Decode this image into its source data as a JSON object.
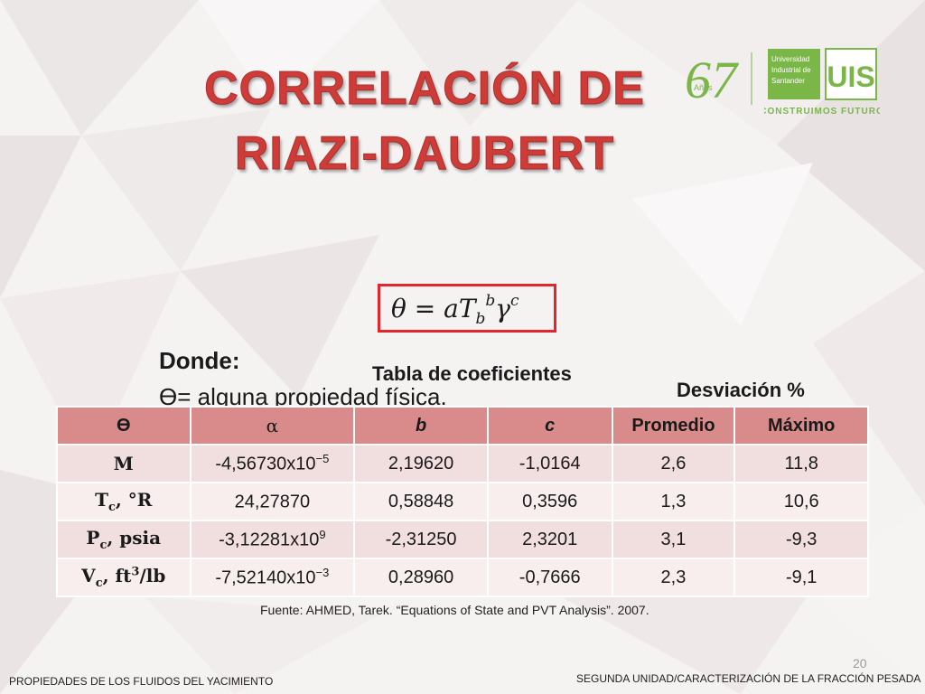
{
  "slide": {
    "title_line1": "CORRELACIÓN DE",
    "title_line2": "RIAZI-DAUBERT",
    "formula": {
      "theta": "θ",
      "equals": " = ",
      "a": "a",
      "T": "T",
      "b_sub": "b",
      "b_exp": "b",
      "gamma": "γ",
      "c_exp": "c"
    },
    "donde": "Donde:",
    "theta_def": "ϴ= alguna propiedad física.",
    "table_caption": "Tabla de coeficientes",
    "deviation_caption": "Desviación %",
    "source": "Fuente: AHMED, Tarek. “Equations of State and PVT Analysis”. 2007.",
    "page_number": "20",
    "footer_left": "PROPIEDADES DE LOS FLUIDOS DEL YACIMIENTO",
    "footer_right": "SEGUNDA UNIDAD/CARACTERIZACIÓN DE LA FRACCIÓN PESADA"
  },
  "logos": {
    "anniversary": "67",
    "anniversary_sub": "Años",
    "uis_name": "Universidad Industrial de Santander",
    "uis_monogram": "UIS",
    "tagline": "CONSTRUIMOS FUTURO"
  },
  "table": {
    "headers": [
      "ϴ",
      "α",
      "b",
      "c",
      "Promedio",
      "Máximo"
    ],
    "rows": [
      {
        "prop": "M",
        "prop_sub": "",
        "prop_unit": "",
        "prop_unit_sup": "",
        "prop_unit_tail": "",
        "a_base": "-4,56730x10",
        "a_exp": "−5",
        "b": "2,19620",
        "c": "-1,0164",
        "prom": "2,6",
        "max": "11,8"
      },
      {
        "prop": "T",
        "prop_sub": "c",
        "prop_unit": ", °R",
        "prop_unit_sup": "",
        "prop_unit_tail": "",
        "a_base": "24,27870",
        "a_exp": "",
        "b": "0,58848",
        "c": "0,3596",
        "prom": "1,3",
        "max": "10,6"
      },
      {
        "prop": "P",
        "prop_sub": "c",
        "prop_unit": ", psia",
        "prop_unit_sup": "",
        "prop_unit_tail": "",
        "a_base": "-3,12281x10",
        "a_exp": "9",
        "b": "-2,31250",
        "c": "2,3201",
        "prom": "3,1",
        "max": "-9,3"
      },
      {
        "prop": "V",
        "prop_sub": "c",
        "prop_unit": ", ft",
        "prop_unit_sup": "3",
        "prop_unit_tail": "/lb",
        "a_base": "-7,52140x10",
        "a_exp": "−3",
        "b": "0,28960",
        "c": "-0,7666",
        "prom": "2,3",
        "max": "-9,1"
      }
    ]
  },
  "colors": {
    "title": "#cf3c38",
    "formula_border": "#e3262e",
    "table_header": "#d98b8b",
    "row_band_1": "#f1dede",
    "row_band_2": "#f8eeee",
    "logo_green": "#7ab648"
  }
}
